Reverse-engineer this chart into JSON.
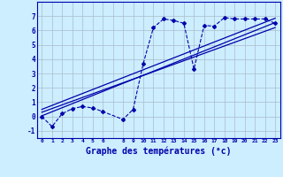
{
  "bg_color": "#cceeff",
  "grid_color": "#aabbcc",
  "line_color": "#0000aa",
  "xlabel": "Graphe des températures (°c)",
  "xlabel_fontsize": 7,
  "ylim": [
    -1.5,
    8.0
  ],
  "xlim": [
    -0.5,
    23.5
  ],
  "yticks": [
    -1,
    0,
    1,
    2,
    3,
    4,
    5,
    6,
    7
  ],
  "xtick_labels": [
    "0",
    "1",
    "2",
    "3",
    "4",
    "5",
    "6",
    "",
    "8",
    "9",
    "10",
    "11",
    "12",
    "13",
    "14",
    "15",
    "16",
    "17",
    "18",
    "19",
    "20",
    "21",
    "22",
    "23"
  ],
  "main_line_x": [
    0,
    1,
    2,
    3,
    4,
    5,
    6,
    8,
    9,
    10,
    11,
    12,
    13,
    14,
    15,
    16,
    17,
    18,
    19,
    20,
    21,
    22,
    23
  ],
  "main_line_y": [
    0.0,
    -0.7,
    0.2,
    0.55,
    0.7,
    0.6,
    0.35,
    -0.2,
    0.5,
    3.7,
    6.2,
    6.8,
    6.7,
    6.5,
    3.3,
    6.35,
    6.3,
    6.9,
    6.8,
    6.8,
    6.8,
    6.8,
    6.5
  ],
  "reg_line1": [
    [
      0,
      23
    ],
    [
      0.05,
      6.55
    ]
  ],
  "reg_line2": [
    [
      0,
      23
    ],
    [
      0.3,
      6.2
    ]
  ],
  "reg_line3": [
    [
      0,
      23
    ],
    [
      0.5,
      6.85
    ]
  ]
}
